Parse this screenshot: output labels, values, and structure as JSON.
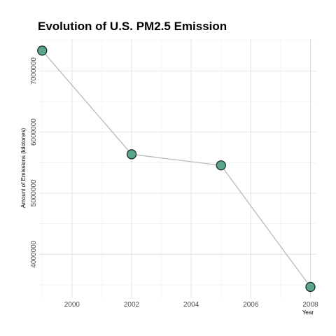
{
  "chart_data": {
    "type": "line",
    "title": "Evolution of U.S. PM2.5 Emission",
    "xlabel": "Year",
    "ylabel": "Amount of Emissions (kilotones)",
    "x": [
      1999,
      2002,
      2005,
      2008
    ],
    "series": [
      {
        "values": [
          7332967,
          5635780,
          5454703,
          3464206
        ]
      }
    ],
    "xlim": [
      1998.9,
      2008.2
    ],
    "ylim": [
      3280000,
      7520000
    ],
    "xticks": [
      "2000",
      "2002",
      "2004",
      "2006",
      "2008"
    ],
    "yticks": [
      "4000000",
      "5000000",
      "6000000",
      "7000000"
    ],
    "grid": true,
    "legend": "none",
    "colors": {
      "point_fill": "#5aa58c",
      "point_stroke": "#1e2e28",
      "line": "#b5b5b5"
    }
  }
}
